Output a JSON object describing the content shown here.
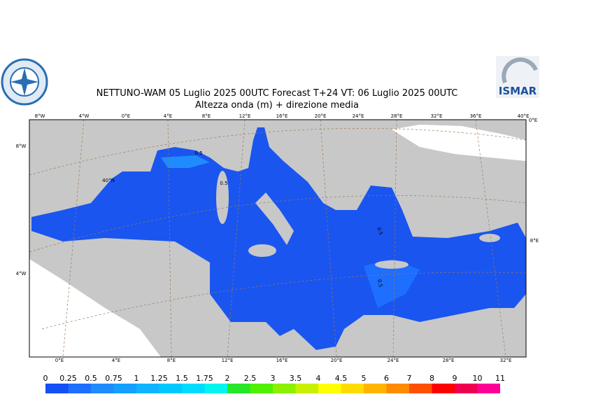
{
  "header": {
    "title": "NETTUNO-WAM  05  Luglio   2025 00UTC Forecast T+24 VT: 06  Luglio   2025 00UTC",
    "subtitle": "Altezza onda (m) + direzione media",
    "logo_text": "ISMAR"
  },
  "map": {
    "top_labels": [
      "8°W",
      "4°W",
      "0°E",
      "4°E",
      "8°E",
      "12°E",
      "16°E",
      "20°E",
      "24°E",
      "28°E",
      "32°E",
      "36°E",
      "40°E"
    ],
    "bottom_labels": [
      "0°E",
      "4°E",
      "8°E",
      "12°E",
      "16°E",
      "20°E",
      "24°E",
      "28°E",
      "32°E"
    ],
    "left_labels": [
      "8°W",
      "4°W"
    ],
    "inner_labels": [
      "40°N"
    ],
    "right_labels": [
      "0°E",
      "8°E"
    ],
    "contour_labels": [
      "0.5",
      "0.5",
      "0.5",
      "0.5"
    ]
  },
  "legend": {
    "levels": [
      0,
      0.25,
      0.5,
      0.75,
      1,
      1.25,
      1.5,
      1.75,
      2,
      2.5,
      3,
      3.5,
      4,
      4.5,
      5,
      6,
      7,
      8,
      9,
      10,
      11
    ],
    "colors": [
      "#1450f5",
      "#1e6eff",
      "#1e8cff",
      "#14a0ff",
      "#0fb4ff",
      "#00c8ff",
      "#00dcff",
      "#00f5f0",
      "#28e628",
      "#50f000",
      "#8cf000",
      "#c8f000",
      "#ffff00",
      "#ffdc00",
      "#ffb400",
      "#ff8c00",
      "#ff5000",
      "#ff0000",
      "#f00050",
      "#ff0096"
    ]
  }
}
